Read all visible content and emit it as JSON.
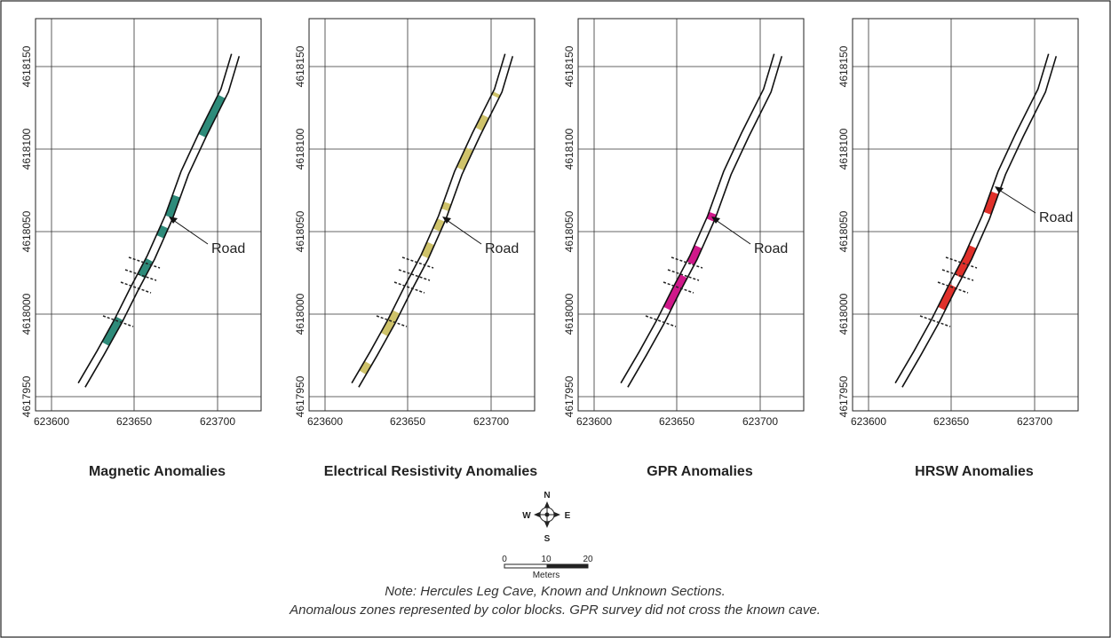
{
  "panels": [
    {
      "title": "Magnetic Anomalies",
      "color": "#2e8b7a",
      "segments": [
        [
          0.13,
          0.21
        ],
        [
          0.34,
          0.39
        ],
        [
          0.46,
          0.49
        ],
        [
          0.52,
          0.58
        ],
        [
          0.76,
          0.88
        ]
      ]
    },
    {
      "title": "Electrical Resistivity Anomalies",
      "color": "#cfc36a",
      "segments": [
        [
          0.04,
          0.07
        ],
        [
          0.16,
          0.23
        ],
        [
          0.4,
          0.44
        ],
        [
          0.48,
          0.51
        ],
        [
          0.54,
          0.56
        ],
        [
          0.66,
          0.72
        ],
        [
          0.78,
          0.82
        ],
        [
          0.88,
          0.89
        ]
      ]
    },
    {
      "title": "GPR Anomalies",
      "color": "#d0188a",
      "segments": [
        [
          0.24,
          0.34
        ],
        [
          0.38,
          0.43
        ],
        [
          0.51,
          0.53
        ]
      ]
    },
    {
      "title": "HRSW Anomalies",
      "color": "#e0302a",
      "segments": [
        [
          0.24,
          0.31
        ],
        [
          0.34,
          0.43
        ],
        [
          0.53,
          0.59
        ]
      ]
    }
  ],
  "easting_ticks": [
    "623600",
    "623650",
    "623700"
  ],
  "northing_ticks": [
    "4617950",
    "4618000",
    "4618050",
    "4618100",
    "4618150"
  ],
  "road_label": "Road",
  "compass": {
    "n": "N",
    "s": "S",
    "e": "E",
    "w": "W"
  },
  "scale": {
    "ticks": [
      "0",
      "10",
      "20"
    ],
    "unit": "Meters"
  },
  "note": {
    "line1": "Note: Hercules Leg Cave, Known and Unknown Sections.",
    "line2": "Anomalous zones represented by color blocks.  GPR survey did not cross the known cave."
  }
}
